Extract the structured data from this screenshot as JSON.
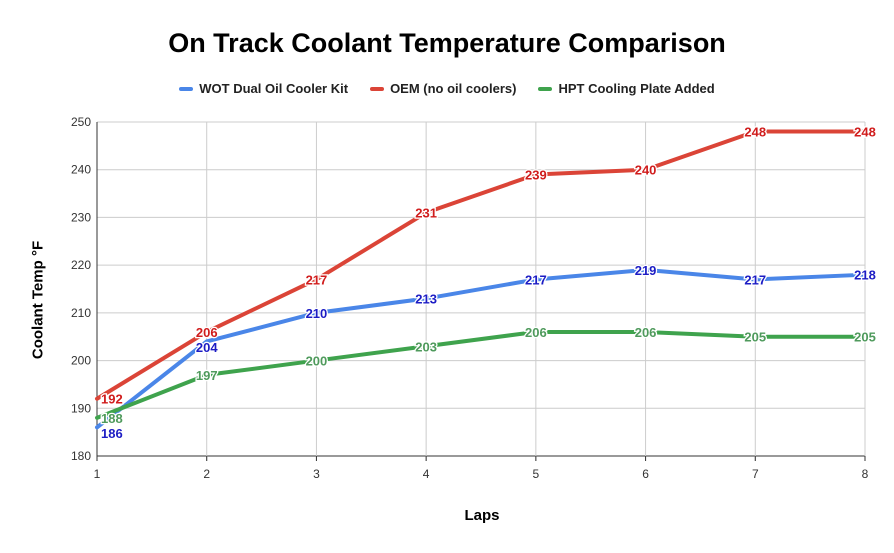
{
  "chart_data": {
    "type": "line",
    "title": "On Track Coolant Temperature Comparison",
    "xlabel": "Laps",
    "ylabel": "Coolant Temp °F",
    "x": [
      1,
      2,
      3,
      4,
      5,
      6,
      7,
      8
    ],
    "xlim": [
      1,
      8
    ],
    "ylim": [
      180,
      250
    ],
    "yticks": [
      180,
      190,
      200,
      210,
      220,
      230,
      240,
      250
    ],
    "grid": true,
    "legend_position": "top",
    "series": [
      {
        "name": "WOT Dual Oil Cooler Kit",
        "color": "#4a86e8",
        "label_color": "#1c1cc4",
        "values": [
          186,
          204,
          210,
          213,
          217,
          219,
          217,
          218
        ]
      },
      {
        "name": "OEM (no oil coolers)",
        "color": "#db4437",
        "label_color": "#d01c1c",
        "values": [
          192,
          206,
          217,
          231,
          239,
          240,
          248,
          248
        ]
      },
      {
        "name": "HPT Cooling Plate Added",
        "color": "#3fa34d",
        "label_color": "#4f9a5c",
        "values": [
          188,
          197,
          200,
          203,
          206,
          206,
          205,
          205
        ]
      }
    ]
  }
}
